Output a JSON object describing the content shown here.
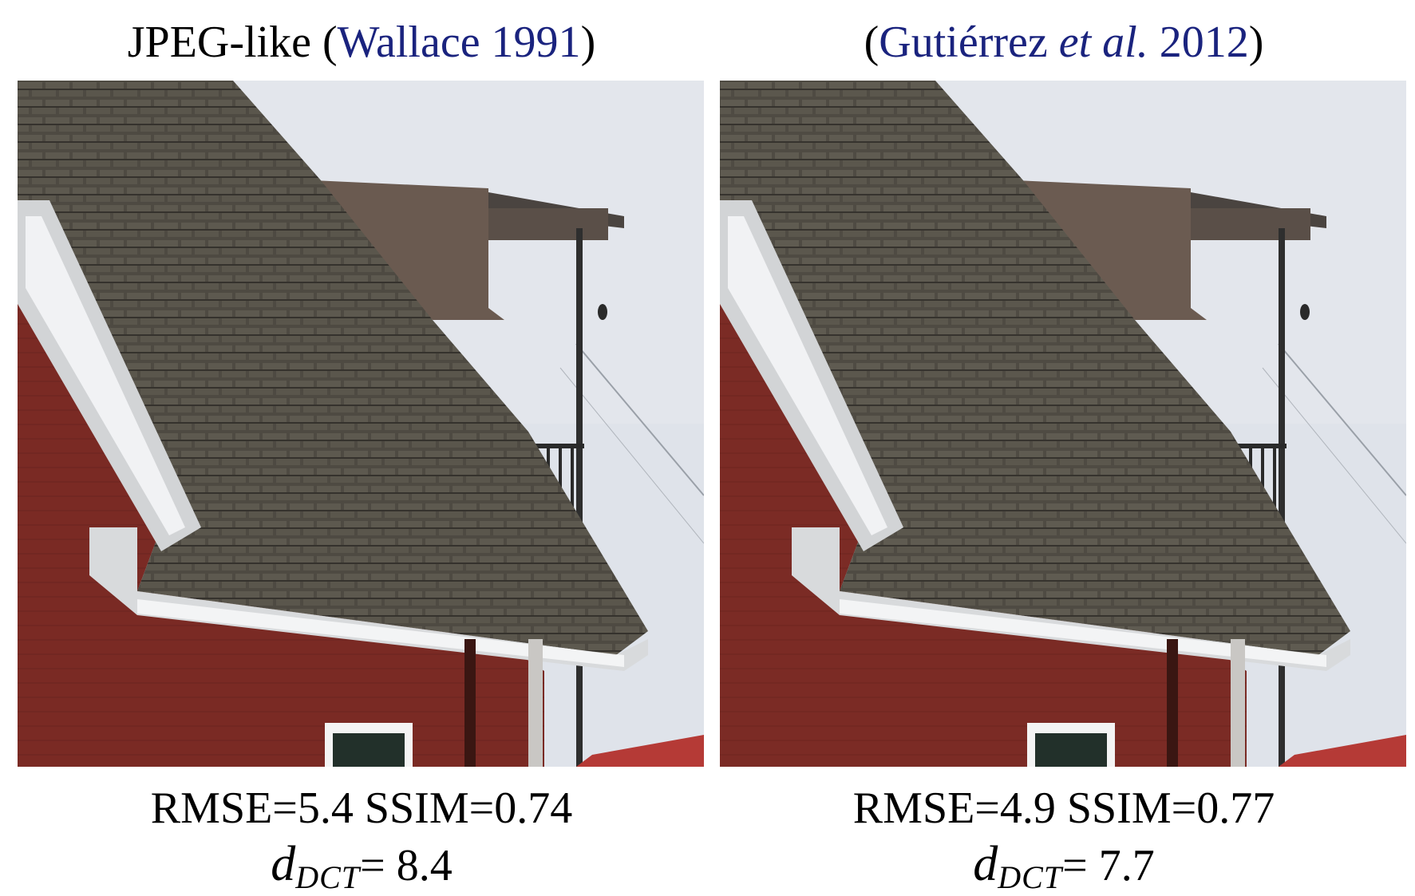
{
  "panels": [
    {
      "method_name": "JPEG-like",
      "citation_open": "(",
      "citation_text": "Wallace 1991",
      "citation_close": ")",
      "image_alt": "Red house roof with shingles and balcony, JPEG-like compression",
      "rmse_label": "RMSE=",
      "rmse_value": "5.4",
      "ssim_label": "SSIM=",
      "ssim_value": "0.74",
      "ddct_symbol": "d",
      "ddct_subscript": "DCT",
      "ddct_equals": "= ",
      "ddct_value": "8.4"
    },
    {
      "method_name": "",
      "citation_open": "(",
      "citation_text_pre": "Gutiérrez ",
      "citation_etal": "et al.",
      "citation_text_post": " 2012",
      "citation_close": ")",
      "image_alt": "Red house roof with shingles and balcony, Gutiérrez et al. 2012 compression",
      "rmse_label": "RMSE=",
      "rmse_value": "4.9",
      "ssim_label": "SSIM=",
      "ssim_value": "0.77",
      "ddct_symbol": "d",
      "ddct_subscript": "DCT",
      "ddct_equals": "= ",
      "ddct_value": "7.7"
    }
  ],
  "colors": {
    "citation": "#1a237e",
    "sky": "#dfe3ea",
    "roof": "#4e4a42",
    "wall": "#7a2a24",
    "trim": "#d8dadc",
    "gable": "#6a5a50"
  }
}
